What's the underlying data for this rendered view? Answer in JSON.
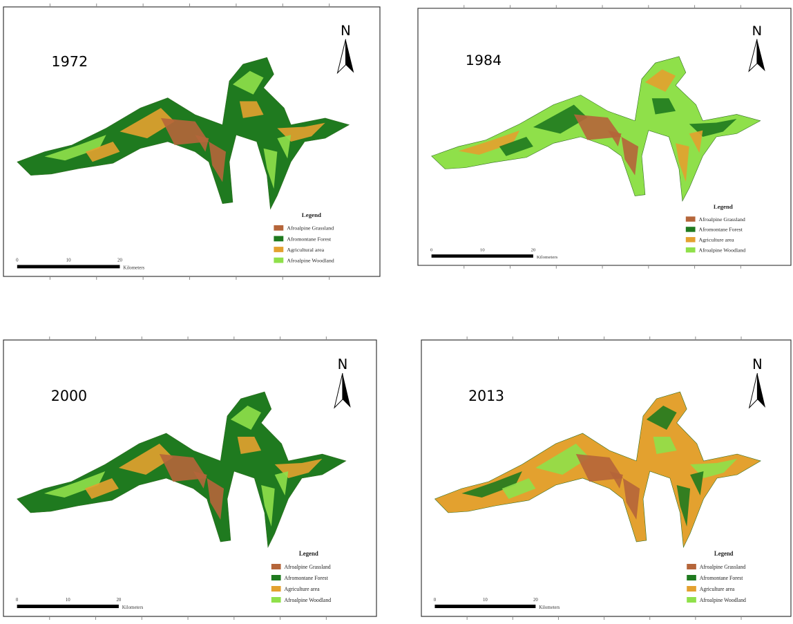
{
  "panels": [
    {
      "year": "1972",
      "north": "N",
      "legend": {
        "title": "Legend",
        "items": [
          {
            "label": "Afroalpine Grassland",
            "color": "#b5653a"
          },
          {
            "label": "Afromontane Forest",
            "color": "#1f7a1f"
          },
          {
            "label": "Agricultural area",
            "color": "#e3a12f"
          },
          {
            "label": "Afroalpine Woodland",
            "color": "#8fe04a"
          }
        ]
      },
      "scale": {
        "labels": [
          "0",
          "10",
          "20"
        ],
        "unit": "Kilometers"
      }
    },
    {
      "year": "1984",
      "north": "N",
      "legend": {
        "title": "Legend",
        "items": [
          {
            "label": "Afroalpine Grassland",
            "color": "#b5653a"
          },
          {
            "label": "Afromontane Forest",
            "color": "#1f7a1f"
          },
          {
            "label": "Agriculture area",
            "color": "#e3a12f"
          },
          {
            "label": "Afroalpine Woodland",
            "color": "#8fe04a"
          }
        ]
      },
      "scale": {
        "labels": [
          "0",
          "10",
          "20"
        ],
        "unit": "Kilometers"
      }
    },
    {
      "year": "2000",
      "north": "N",
      "legend": {
        "title": "Legend",
        "items": [
          {
            "label": "Afroalpine Grassland",
            "color": "#b5653a"
          },
          {
            "label": "Afromontane Forest",
            "color": "#1f7a1f"
          },
          {
            "label": "Agriculture area",
            "color": "#e3a12f"
          },
          {
            "label": "Afroalpine Woodland",
            "color": "#8fe04a"
          }
        ]
      },
      "scale": {
        "labels": [
          "0",
          "10",
          "20"
        ],
        "unit": "Kilometers"
      }
    },
    {
      "year": "2013",
      "north": "N",
      "legend": {
        "title": "Legend",
        "items": [
          {
            "label": "Afroalpine Grassland",
            "color": "#b5653a"
          },
          {
            "label": "Afromontane Forest",
            "color": "#1f7a1f"
          },
          {
            "label": "Agriculture area",
            "color": "#e3a12f"
          },
          {
            "label": "Afroalpine Woodland",
            "color": "#8fe04a"
          }
        ]
      },
      "scale": {
        "labels": [
          "0",
          "10",
          "20"
        ],
        "unit": "Kilometers"
      }
    }
  ]
}
